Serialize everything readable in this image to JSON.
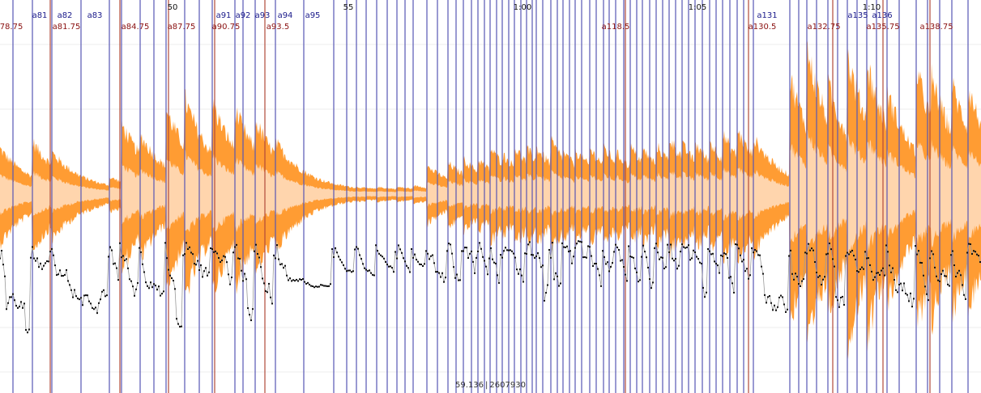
{
  "colors": {
    "background": "#ffffff",
    "waveform_outer": "#ff9c33",
    "waveform_inner": "#ffd5ad",
    "curve": "#111111",
    "curve_line": "#9a9a9a",
    "barline": "#5656b4",
    "beatline": "#b04a3a",
    "time_label": "#111111",
    "bar_label": "#1a1a8a",
    "beat_label": "#8a1010",
    "gridline": "#eeeeee"
  },
  "time_ruler": {
    "labels": [
      "50",
      "55",
      "1:00",
      "1:05",
      "1:10"
    ],
    "seconds": [
      50,
      55,
      60,
      65,
      70
    ]
  },
  "bar_markers": {
    "labels": [
      "a81",
      "a82",
      "a83",
      "a91",
      "a92",
      "a93",
      "a94",
      "a95",
      "a131",
      "a135",
      "a136"
    ]
  },
  "beat_markers": {
    "labels": [
      "78.75",
      "a81.75",
      "a84.75",
      "a87.75",
      "a90.75",
      "a93.5",
      "a118.5",
      "a130.5",
      "a132.75",
      "a135.75",
      "a138.75"
    ]
  },
  "readout": {
    "time": "59.136",
    "sample": "2607930"
  }
}
